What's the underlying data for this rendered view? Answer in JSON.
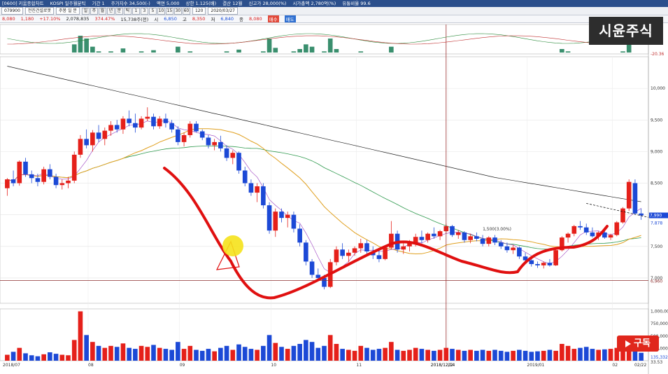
{
  "titlebar": [
    "[0600] 키움종합차트",
    "KOSPI 일주월분틱",
    "기간 1",
    "주가지수 34,500(-)",
    "액면 5,000",
    "상한 1.125(배)",
    "결산 12월",
    "신고가 28,000(%)",
    "시가총액 2,780억(%)",
    "유통비율 99.6"
  ],
  "toolbar": {
    "code": "079900",
    "name": "전진건설로봇",
    "period_label": "주봉 일 분",
    "count": "120",
    "date": "2020/03/27",
    "buttons": [
      "일",
      "주",
      "월",
      "년",
      "분",
      "틱",
      "1",
      "3",
      "5",
      "10",
      "15",
      "30",
      "60"
    ]
  },
  "quote": {
    "price": "8,080",
    "change": "1,180",
    "rate": "+17.10%",
    "volume": "2,078,835",
    "vol_rate": "374.47%",
    "open_label": "시",
    "open": "6,850",
    "high_label": "고",
    "high": "8,350",
    "low_label": "저",
    "low": "6,840",
    "close_label": "종",
    "close": "8,080",
    "buy": "매수",
    "sell": "매도",
    "extra": "15,738주(전)"
  },
  "watermark": "시윤주식",
  "subscribe_label": "구독",
  "chart_data": {
    "type": "candlestick",
    "title": "",
    "x_tick_labels": [
      "2018/07",
      "08",
      "09",
      "10",
      "11",
      "12",
      "2019/01",
      "02",
      "02/22"
    ],
    "price_axis": {
      "ticks": [
        "10,000",
        "9,500",
        "9,000",
        "8,500",
        "8,000",
        "7,500",
        "7,000"
      ],
      "ylim": [
        6600,
        10500
      ],
      "current": "7,990",
      "current2": "7,878",
      "low_line": "6,960"
    },
    "volume_axis": {
      "ticks": [
        "1,000,000",
        "750,000",
        "500,000",
        "250,000"
      ],
      "last": "135,332",
      "last2": "33.53"
    },
    "osc_axis": {
      "ticks": [
        "-20.36"
      ]
    },
    "annotation_text": "1,500(3.00%)",
    "crosshair_date": "2018/12/14",
    "ohlc": [
      [
        8420,
        8580,
        8300,
        8560
      ],
      [
        8560,
        8700,
        8450,
        8500
      ],
      [
        8500,
        8860,
        8460,
        8840
      ],
      [
        8840,
        8900,
        8600,
        8640
      ],
      [
        8640,
        8700,
        8500,
        8580
      ],
      [
        8580,
        8650,
        8450,
        8520
      ],
      [
        8520,
        8760,
        8480,
        8720
      ],
      [
        8720,
        8800,
        8560,
        8600
      ],
      [
        8600,
        8650,
        8420,
        8470
      ],
      [
        8470,
        8560,
        8400,
        8500
      ],
      [
        8500,
        8600,
        8420,
        8540
      ],
      [
        8540,
        9000,
        8500,
        8950
      ],
      [
        8950,
        9260,
        8900,
        9200
      ],
      [
        9200,
        9350,
        9050,
        9100
      ],
      [
        9100,
        9340,
        9000,
        9300
      ],
      [
        9300,
        9420,
        9150,
        9200
      ],
      [
        9200,
        9380,
        9100,
        9330
      ],
      [
        9330,
        9480,
        9250,
        9420
      ],
      [
        9420,
        9500,
        9300,
        9350
      ],
      [
        9350,
        9560,
        9280,
        9520
      ],
      [
        9520,
        9650,
        9400,
        9450
      ],
      [
        9450,
        9600,
        9300,
        9380
      ],
      [
        9380,
        9560,
        9350,
        9520
      ],
      [
        9520,
        9700,
        9480,
        9550
      ],
      [
        9550,
        9600,
        9350,
        9400
      ],
      [
        9400,
        9560,
        9360,
        9520
      ],
      [
        9520,
        9600,
        9380,
        9450
      ],
      [
        9450,
        9500,
        9300,
        9350
      ],
      [
        9350,
        9400,
        9100,
        9150
      ],
      [
        9150,
        9300,
        9080,
        9260
      ],
      [
        9260,
        9480,
        9220,
        9440
      ],
      [
        9440,
        9480,
        9300,
        9320
      ],
      [
        9320,
        9350,
        9180,
        9220
      ],
      [
        9220,
        9260,
        9050,
        9100
      ],
      [
        9100,
        9200,
        9020,
        9150
      ],
      [
        9150,
        9250,
        9000,
        9050
      ],
      [
        9050,
        9100,
        8850,
        8900
      ],
      [
        8900,
        9020,
        8800,
        8980
      ],
      [
        8980,
        9000,
        8650,
        8700
      ],
      [
        8700,
        8760,
        8450,
        8500
      ],
      [
        8500,
        8560,
        8300,
        8350
      ],
      [
        8350,
        8500,
        8200,
        8450
      ],
      [
        8450,
        8500,
        8100,
        8150
      ],
      [
        8150,
        8200,
        7700,
        7750
      ],
      [
        7750,
        8100,
        7650,
        8050
      ],
      [
        8050,
        8100,
        7880,
        7950
      ],
      [
        7950,
        8050,
        7800,
        8000
      ],
      [
        8000,
        8050,
        7720,
        7780
      ],
      [
        7780,
        7850,
        7500,
        7560
      ],
      [
        7560,
        7600,
        7200,
        7260
      ],
      [
        7260,
        7300,
        7000,
        7050
      ],
      [
        7050,
        7150,
        6950,
        7000
      ],
      [
        7000,
        7050,
        6820,
        6860
      ],
      [
        6860,
        7300,
        6840,
        7250
      ],
      [
        7250,
        7500,
        7200,
        7450
      ],
      [
        7450,
        7550,
        7300,
        7350
      ],
      [
        7350,
        7450,
        7250,
        7400
      ],
      [
        7400,
        7500,
        7350,
        7470
      ],
      [
        7470,
        7620,
        7400,
        7550
      ],
      [
        7550,
        7600,
        7380,
        7420
      ],
      [
        7420,
        7500,
        7300,
        7360
      ],
      [
        7360,
        7450,
        7250,
        7300
      ],
      [
        7300,
        7500,
        7280,
        7480
      ],
      [
        7480,
        7900,
        7450,
        7700
      ],
      [
        7700,
        7750,
        7400,
        7450
      ],
      [
        7450,
        7550,
        7380,
        7500
      ],
      [
        7500,
        7600,
        7420,
        7560
      ],
      [
        7560,
        7700,
        7500,
        7650
      ],
      [
        7650,
        7750,
        7550,
        7600
      ],
      [
        7600,
        7720,
        7560,
        7700
      ],
      [
        7700,
        7800,
        7620,
        7660
      ],
      [
        7660,
        7760,
        7600,
        7740
      ],
      [
        7740,
        7860,
        7700,
        7820
      ],
      [
        7820,
        7840,
        7650,
        7680
      ],
      [
        7680,
        7760,
        7620,
        7720
      ],
      [
        7720,
        7740,
        7560,
        7600
      ],
      [
        7600,
        7700,
        7550,
        7660
      ],
      [
        7660,
        7720,
        7580,
        7620
      ],
      [
        7620,
        7680,
        7500,
        7540
      ],
      [
        7540,
        7660,
        7500,
        7640
      ],
      [
        7640,
        7680,
        7520,
        7560
      ],
      [
        7560,
        7600,
        7460,
        7500
      ],
      [
        7500,
        7560,
        7400,
        7440
      ],
      [
        7440,
        7520,
        7380,
        7480
      ],
      [
        7480,
        7500,
        7300,
        7340
      ],
      [
        7340,
        7400,
        7240,
        7280
      ],
      [
        7280,
        7320,
        7180,
        7220
      ],
      [
        7220,
        7260,
        7160,
        7200
      ],
      [
        7200,
        7260,
        7150,
        7240
      ],
      [
        7240,
        7300,
        7180,
        7200
      ],
      [
        7200,
        7460,
        7190,
        7440
      ],
      [
        7440,
        7660,
        7420,
        7640
      ],
      [
        7640,
        7720,
        7560,
        7700
      ],
      [
        7700,
        7840,
        7660,
        7820
      ],
      [
        7820,
        7900,
        7760,
        7800
      ],
      [
        7800,
        7860,
        7680,
        7720
      ],
      [
        7720,
        7800,
        7640,
        7660
      ],
      [
        7660,
        7740,
        7600,
        7720
      ],
      [
        7720,
        7760,
        7620,
        7640
      ],
      [
        7640,
        7700,
        7600,
        7680
      ],
      [
        7680,
        7900,
        7660,
        7880
      ],
      [
        7880,
        8120,
        7860,
        8100
      ],
      [
        8100,
        8560,
        8060,
        8520
      ],
      [
        8500,
        8560,
        8000,
        8020
      ],
      [
        8020,
        8100,
        7920,
        7990
      ]
    ],
    "volume": [
      120,
      180,
      260,
      150,
      110,
      90,
      130,
      170,
      140,
      120,
      110,
      420,
      1000,
      520,
      380,
      300,
      260,
      300,
      280,
      350,
      260,
      240,
      300,
      280,
      320,
      260,
      240,
      220,
      380,
      240,
      300,
      220,
      200,
      240,
      190,
      260,
      300,
      220,
      330,
      280,
      240,
      220,
      300,
      520,
      360,
      280,
      240,
      300,
      340,
      420,
      380,
      260,
      300,
      520,
      340,
      240,
      220,
      200,
      300,
      260,
      220,
      240,
      260,
      380,
      220,
      200,
      220,
      260,
      240,
      220,
      200,
      220,
      260,
      240,
      220,
      200,
      220,
      200,
      220,
      200,
      220,
      200,
      180,
      200,
      220,
      200,
      180,
      190,
      200,
      220,
      200,
      340,
      300,
      240,
      260,
      280,
      240,
      220,
      230,
      240,
      260,
      300,
      440,
      260,
      160
    ]
  }
}
